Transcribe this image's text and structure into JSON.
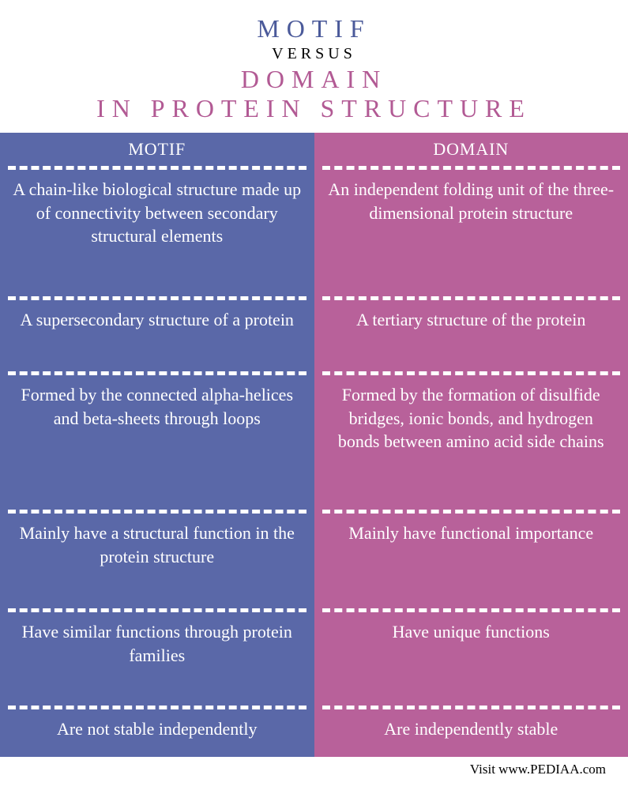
{
  "header": {
    "line1": "MOTIF",
    "line2": "VERSUS",
    "line3": "DOMAIN",
    "line4": "IN PROTEIN STRUCTURE"
  },
  "colors": {
    "motif_bg": "#5a68a8",
    "domain_bg": "#b8619a",
    "motif_title": "#4b5a9a",
    "domain_title": "#b25a94",
    "divider": "#ffffff",
    "text": "#ffffff"
  },
  "columns": {
    "left": {
      "header": "MOTIF"
    },
    "right": {
      "header": "DOMAIN"
    }
  },
  "rows": [
    {
      "left": "A chain-like biological structure made up of connectivity between secondary structural elements",
      "right": "An independent folding unit of the three-dimensional protein structure"
    },
    {
      "left": "A supersecondary structure of a protein",
      "right": "A tertiary structure of the protein"
    },
    {
      "left": "Formed by the connected alpha-helices and beta-sheets through loops",
      "right": "Formed by the formation of disulfide bridges, ionic bonds, and hydrogen bonds between amino acid side chains"
    },
    {
      "left": "Mainly have a structural function in the protein structure",
      "right": "Mainly have functional importance"
    },
    {
      "left": "Have similar functions through protein families",
      "right": "Have unique functions"
    },
    {
      "left": "Are not stable independently",
      "right": "Are independently stable"
    }
  ],
  "footer": "Visit www.PEDIAA.com"
}
